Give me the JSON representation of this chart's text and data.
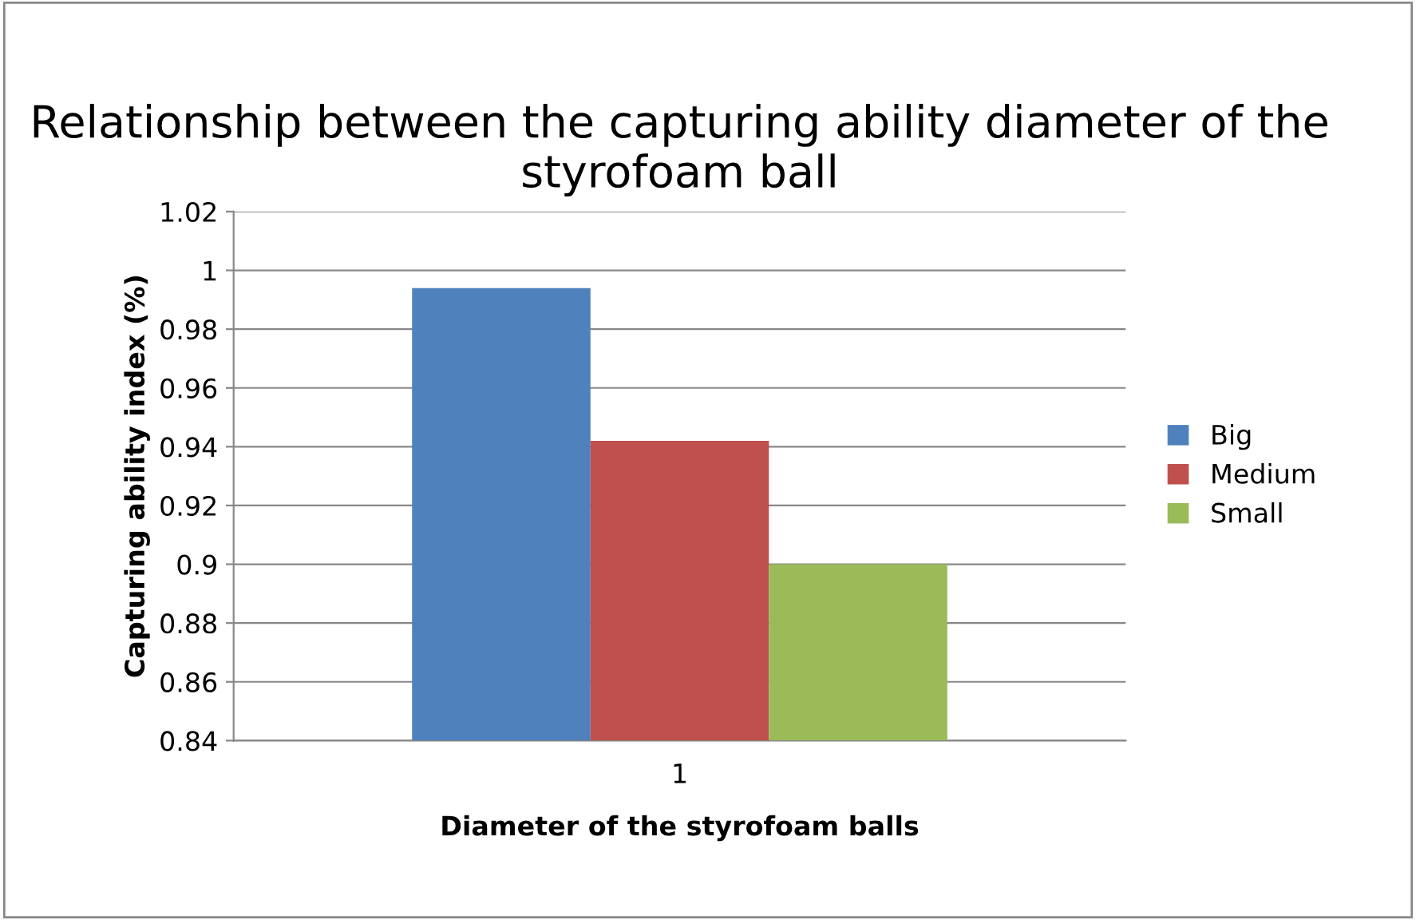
{
  "chart_data": {
    "type": "bar",
    "title": "Relationship between the capturing ability diameter of the styrofoam ball",
    "xlabel": "Diameter of the styrofoam balls",
    "ylabel": "Capturing ability index (%)",
    "categories": [
      "1"
    ],
    "series": [
      {
        "name": "Big",
        "color": "#4f81bd",
        "values": [
          0.994
        ]
      },
      {
        "name": "Medium",
        "color": "#c0504d",
        "values": [
          0.942
        ]
      },
      {
        "name": "Small",
        "color": "#9bbb59",
        "values": [
          0.9
        ]
      }
    ],
    "ylim": [
      0.84,
      1.02
    ],
    "yticks": [
      {
        "value": 0.84,
        "label": "0.84"
      },
      {
        "value": 0.86,
        "label": "0.86"
      },
      {
        "value": 0.88,
        "label": "0.88"
      },
      {
        "value": 0.9,
        "label": "0.9"
      },
      {
        "value": 0.92,
        "label": "0.92"
      },
      {
        "value": 0.94,
        "label": "0.94"
      },
      {
        "value": 0.96,
        "label": "0.96"
      },
      {
        "value": 0.98,
        "label": "0.98"
      },
      {
        "value": 1,
        "label": "1"
      },
      {
        "value": 1.02,
        "label": "1.02"
      }
    ],
    "grid": "y",
    "legend": "right"
  }
}
